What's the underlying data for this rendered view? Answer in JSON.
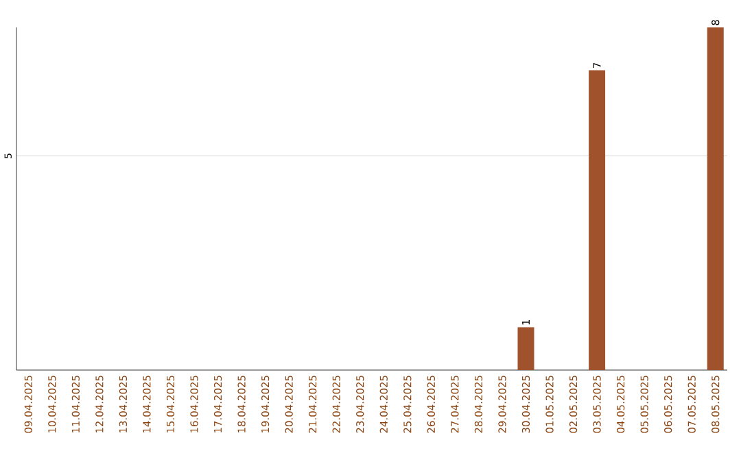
{
  "chart_data": {
    "type": "bar",
    "categories": [
      "09.04.2025",
      "10.04.2025",
      "11.04.2025",
      "12.04.2025",
      "13.04.2025",
      "14.04.2025",
      "15.04.2025",
      "16.04.2025",
      "17.04.2025",
      "18.04.2025",
      "19.04.2025",
      "20.04.2025",
      "21.04.2025",
      "22.04.2025",
      "23.04.2025",
      "24.04.2025",
      "25.04.2025",
      "26.04.2025",
      "27.04.2025",
      "28.04.2025",
      "29.04.2025",
      "30.04.2025",
      "01.05.2025",
      "02.05.2025",
      "03.05.2025",
      "04.05.2025",
      "05.05.2025",
      "06.05.2025",
      "07.05.2025",
      "08.05.2025"
    ],
    "values": [
      null,
      null,
      null,
      null,
      null,
      null,
      null,
      null,
      null,
      null,
      null,
      null,
      null,
      null,
      null,
      null,
      null,
      null,
      null,
      null,
      null,
      1,
      null,
      null,
      7,
      null,
      null,
      null,
      null,
      8
    ],
    "data_labels": true,
    "color": "#a0522d",
    "ylim": [
      0,
      8
    ],
    "yticks": [
      5
    ],
    "grid": "y"
  }
}
